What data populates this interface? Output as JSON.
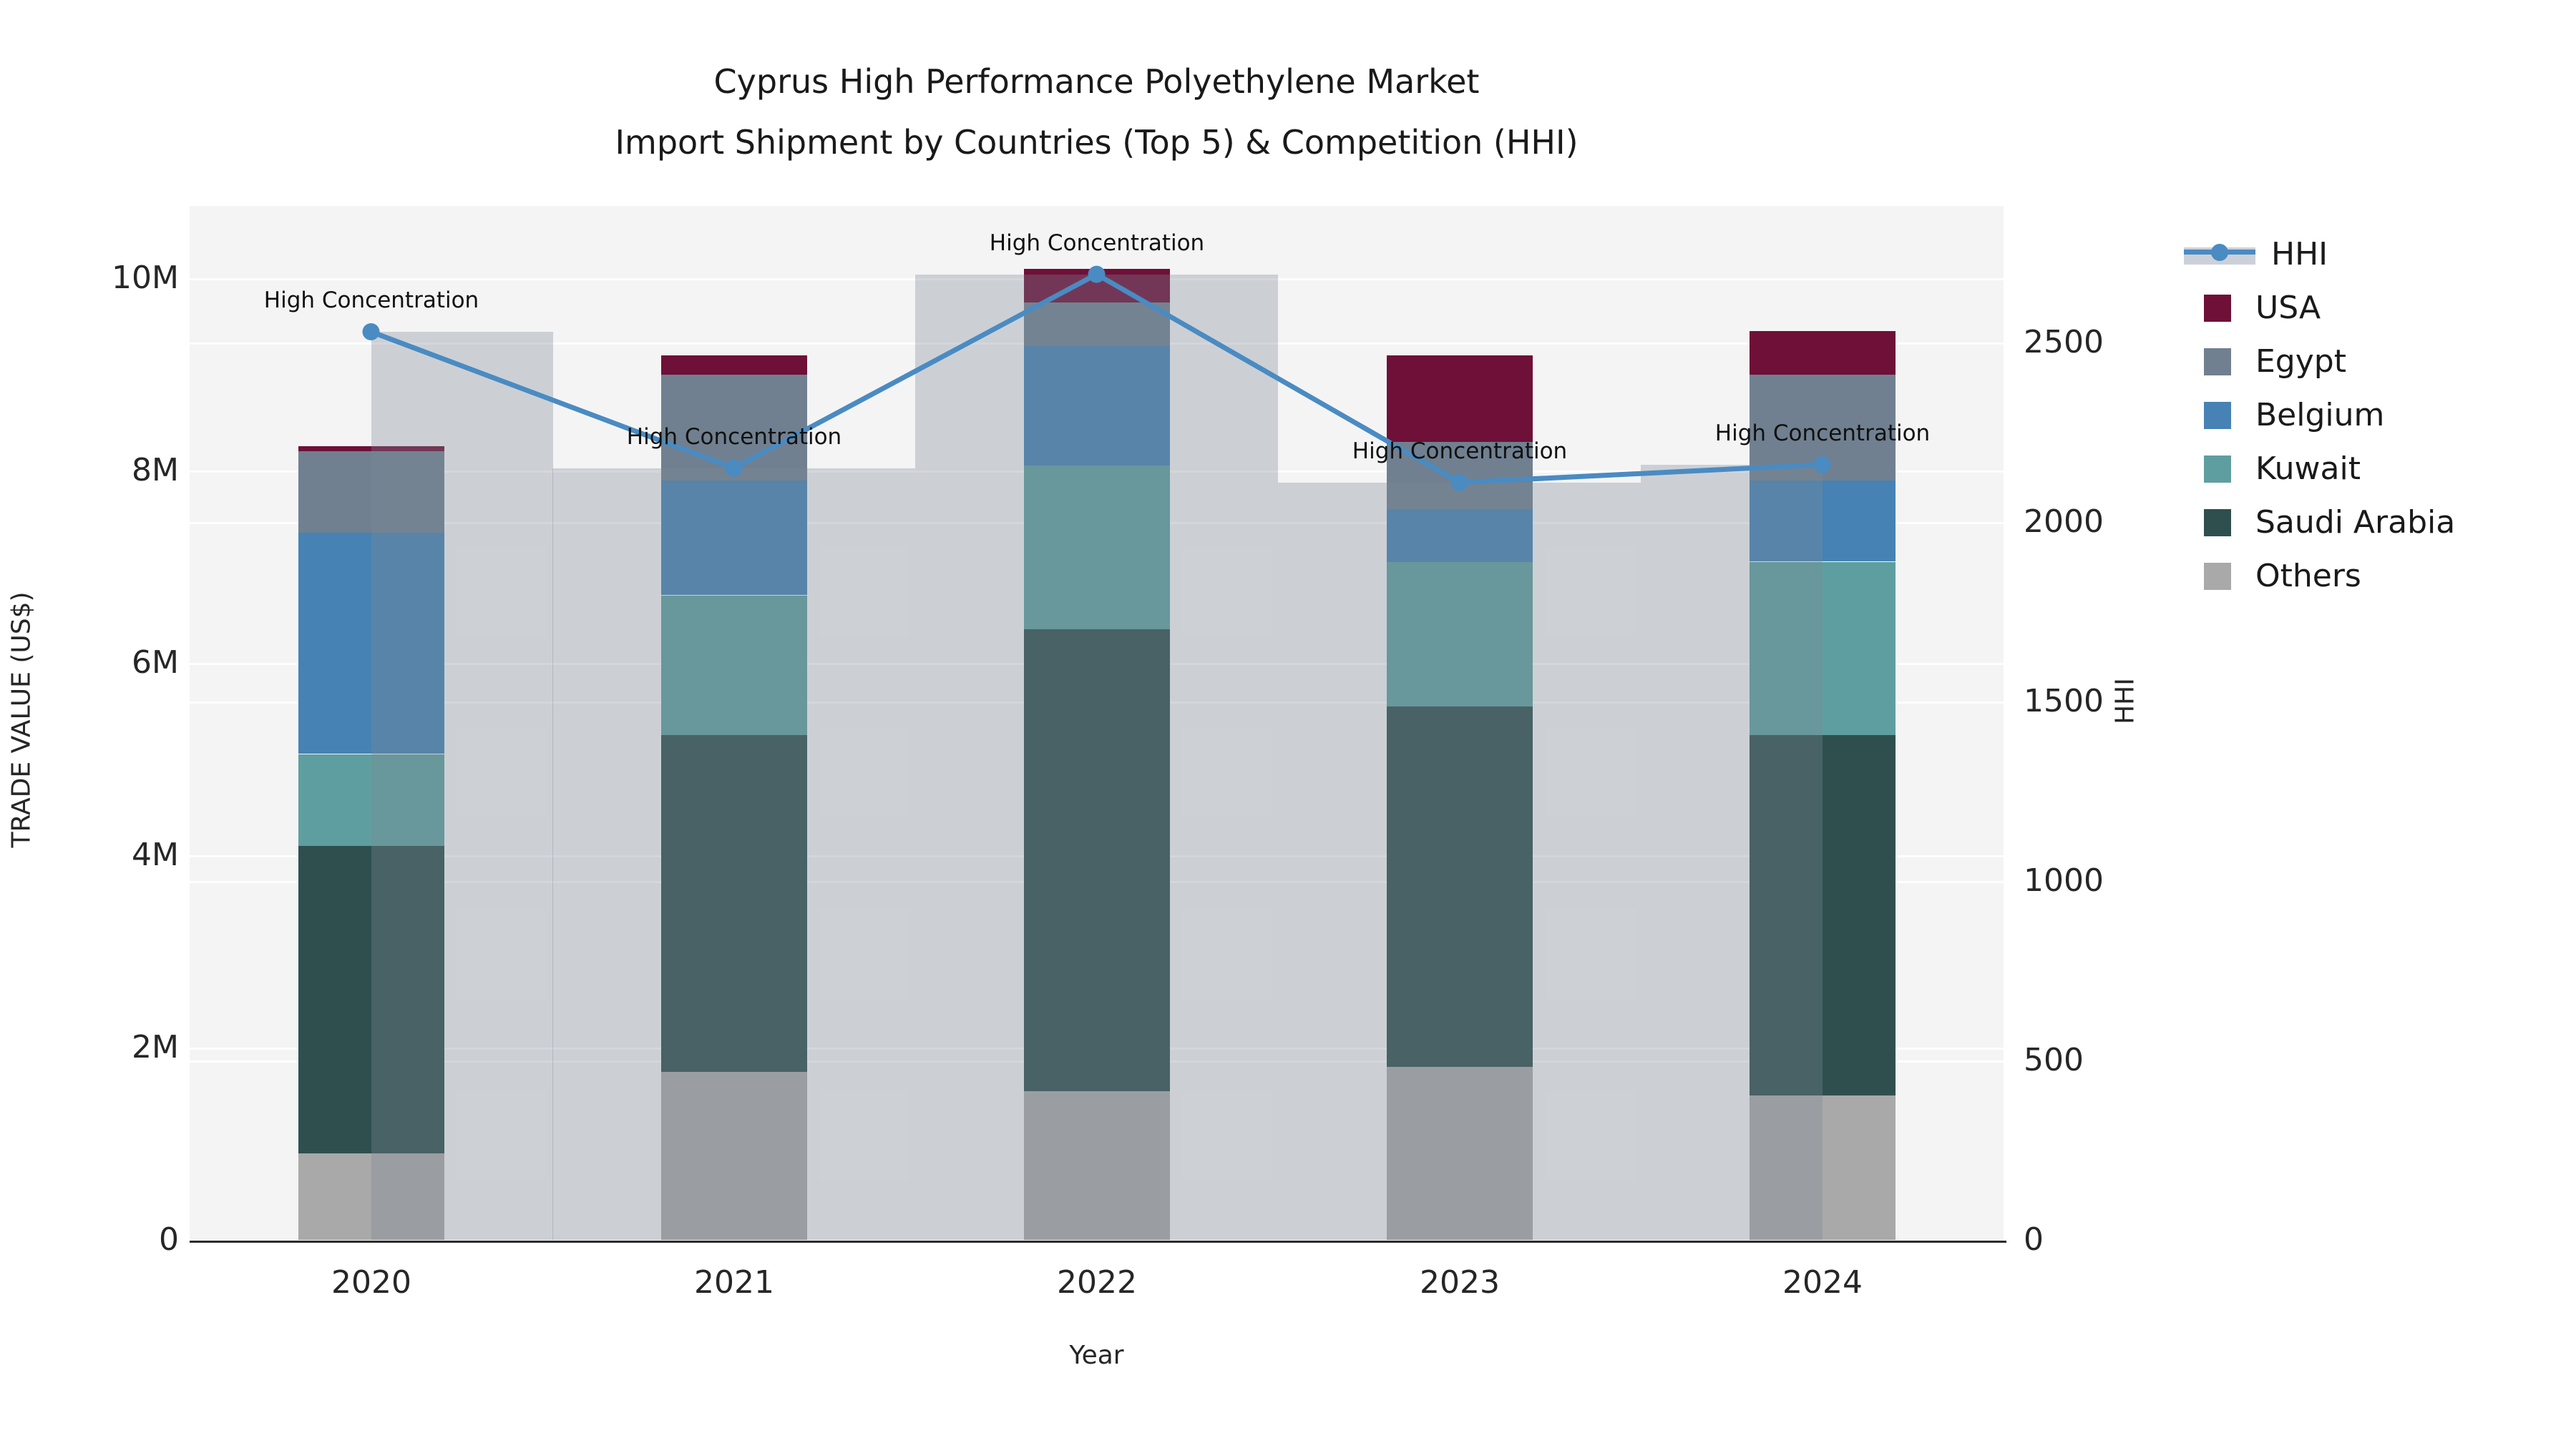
{
  "chart_data": {
    "type": "bar",
    "title_line1": "Cyprus High Performance Polyethylene Market",
    "title_line2": "Import Shipment by Countries (Top 5) & Competition (HHI)",
    "xlabel": "Year",
    "ylabel_left": "TRADE VALUE (US$)",
    "ylabel_right": "HHI",
    "categories": [
      "2020",
      "2021",
      "2022",
      "2023",
      "2024"
    ],
    "stacked_unit": "US$ (millions)",
    "series": [
      {
        "name": "USA",
        "color": "#6e1038",
        "values": [
          0.05,
          0.2,
          0.35,
          0.9,
          0.45
        ]
      },
      {
        "name": "Egypt",
        "color": "#708090",
        "values": [
          0.85,
          1.1,
          0.45,
          0.7,
          1.1
        ]
      },
      {
        "name": "Belgium",
        "color": "#4682b4",
        "values": [
          2.3,
          1.2,
          1.25,
          0.55,
          0.85
        ]
      },
      {
        "name": "Kuwait",
        "color": "#5f9ea0",
        "values": [
          0.95,
          1.45,
          1.7,
          1.5,
          1.8
        ]
      },
      {
        "name": "Saudi Arabia",
        "color": "#2f4f4f",
        "values": [
          3.2,
          3.5,
          4.8,
          3.75,
          3.75
        ]
      },
      {
        "name": "Others",
        "color": "#a9a9a9",
        "values": [
          0.9,
          1.75,
          1.55,
          1.8,
          1.5
        ]
      }
    ],
    "stack_order_bottom_to_top": [
      "Others",
      "Saudi Arabia",
      "Kuwait",
      "Belgium",
      "Egypt",
      "USA"
    ],
    "line_series": {
      "name": "HHI",
      "color": "#4a8bc2",
      "fill_color": "rgba(125,138,150,0.33)",
      "values": [
        2530,
        2150,
        2690,
        2110,
        2160
      ]
    },
    "annotations": [
      {
        "x": "2020",
        "label": "High Concentration"
      },
      {
        "x": "2021",
        "label": "High Concentration"
      },
      {
        "x": "2022",
        "label": "High Concentration"
      },
      {
        "x": "2023",
        "label": "High Concentration"
      },
      {
        "x": "2024",
        "label": "High Concentration"
      }
    ],
    "legend_order": [
      "HHI",
      "USA",
      "Egypt",
      "Belgium",
      "Kuwait",
      "Saudi Arabia",
      "Others"
    ],
    "y_left_ticks": [
      {
        "value": 0,
        "label": "0"
      },
      {
        "value": 2,
        "label": "2M"
      },
      {
        "value": 4,
        "label": "4M"
      },
      {
        "value": 6,
        "label": "6M"
      },
      {
        "value": 8,
        "label": "8M"
      },
      {
        "value": 10,
        "label": "10M"
      }
    ],
    "y_right_ticks": [
      {
        "value": 0,
        "label": "0"
      },
      {
        "value": 500,
        "label": "500"
      },
      {
        "value": 1000,
        "label": "1000"
      },
      {
        "value": 1500,
        "label": "1500"
      },
      {
        "value": 2000,
        "label": "2000"
      },
      {
        "value": 2500,
        "label": "2500"
      }
    ],
    "ylim_left_millions": [
      0,
      10.75
    ],
    "ylim_right": [
      0,
      2892
    ],
    "grid": "horizontal-white-on-lightgray",
    "plot_background": "#f4f4f5",
    "legend_position": "outside-right-top"
  }
}
